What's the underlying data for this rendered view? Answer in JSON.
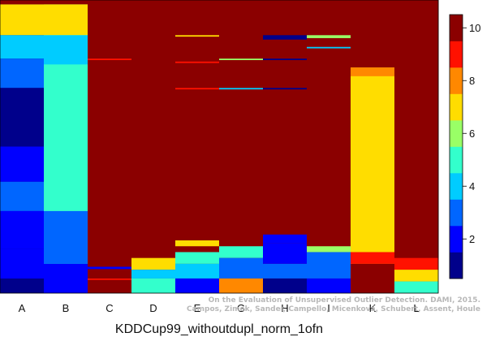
{
  "chart_data": {
    "type": "heatmap",
    "xlabel": "KDDCup99_withoutdupl_norm_1ofn",
    "columns": [
      "A",
      "B",
      "C",
      "D",
      "E",
      "G",
      "H",
      "I",
      "K",
      "L"
    ],
    "color_scale": {
      "min": 0.5,
      "max": 10.5,
      "ticks": [
        2,
        4,
        6,
        8,
        10
      ],
      "colors": [
        "#00008B",
        "#0000FF",
        "#0066FF",
        "#00CCFF",
        "#33FFCC",
        "#99FF66",
        "#FFDD00",
        "#FF8800",
        "#FF1100",
        "#8B0000"
      ]
    },
    "base_column_values": [
      1,
      5,
      10,
      10,
      10,
      10,
      10,
      10,
      7,
      10
    ],
    "column_segments": [
      [
        {
          "from": 0,
          "to": 0.015,
          "value": 10
        },
        {
          "from": 0.015,
          "to": 0.12,
          "value": 6.5
        },
        {
          "from": 0.12,
          "to": 0.2,
          "value": 4
        },
        {
          "from": 0.2,
          "to": 0.3,
          "value": 2.5
        },
        {
          "from": 0.3,
          "to": 0.5,
          "value": 1.3
        },
        {
          "from": 0.5,
          "to": 0.62,
          "value": 1.5
        },
        {
          "from": 0.62,
          "to": 0.72,
          "value": 2.5
        },
        {
          "from": 0.72,
          "to": 0.85,
          "value": 2
        },
        {
          "from": 0.85,
          "to": 0.95,
          "value": 1.5
        }
      ],
      [
        {
          "from": 0,
          "to": 0.015,
          "value": 10
        },
        {
          "from": 0.015,
          "to": 0.12,
          "value": 6.5
        },
        {
          "from": 0.12,
          "to": 0.22,
          "value": 3.5
        },
        {
          "from": 0.22,
          "to": 0.5,
          "value": 5
        },
        {
          "from": 0.5,
          "to": 0.72,
          "value": 4.6
        },
        {
          "from": 0.72,
          "to": 0.9,
          "value": 2.5
        },
        {
          "from": 0.9,
          "to": 1,
          "value": 1.5
        }
      ],
      [
        {
          "from": 0.2,
          "to": 0.205,
          "value": 9
        },
        {
          "from": 0.91,
          "to": 0.918,
          "value": 2
        },
        {
          "from": 0.95,
          "to": 0.955,
          "value": 9
        }
      ],
      [
        {
          "from": 0.88,
          "to": 0.92,
          "value": 6.5
        },
        {
          "from": 0.92,
          "to": 0.95,
          "value": 3.5
        },
        {
          "from": 0.95,
          "to": 1,
          "value": 4.5
        }
      ],
      [
        {
          "from": 0.12,
          "to": 0.125,
          "value": 7
        },
        {
          "from": 0.21,
          "to": 0.215,
          "value": 9
        },
        {
          "from": 0.3,
          "to": 0.305,
          "value": 9
        },
        {
          "from": 0.82,
          "to": 0.84,
          "value": 6.5
        },
        {
          "from": 0.86,
          "to": 0.9,
          "value": 4.5
        },
        {
          "from": 0.9,
          "to": 0.95,
          "value": 3.5
        },
        {
          "from": 0.95,
          "to": 1,
          "value": 2
        }
      ],
      [
        {
          "from": 0.2,
          "to": 0.205,
          "value": 6
        },
        {
          "from": 0.3,
          "to": 0.305,
          "value": 4
        },
        {
          "from": 0.84,
          "to": 0.88,
          "value": 4.5
        },
        {
          "from": 0.88,
          "to": 0.95,
          "value": 2.5
        },
        {
          "from": 0.95,
          "to": 1,
          "value": 8
        }
      ],
      [
        {
          "from": 0.12,
          "to": 0.135,
          "value": 1
        },
        {
          "from": 0.2,
          "to": 0.205,
          "value": 1
        },
        {
          "from": 0.3,
          "to": 0.305,
          "value": 1
        },
        {
          "from": 0.8,
          "to": 0.83,
          "value": 2
        },
        {
          "from": 0.83,
          "to": 0.9,
          "value": 1.5
        },
        {
          "from": 0.9,
          "to": 0.95,
          "value": 2.5
        },
        {
          "from": 0.95,
          "to": 1,
          "value": 1
        }
      ],
      [
        {
          "from": 0.12,
          "to": 0.13,
          "value": 6
        },
        {
          "from": 0.16,
          "to": 0.165,
          "value": 4
        },
        {
          "from": 0.84,
          "to": 0.86,
          "value": 6
        },
        {
          "from": 0.86,
          "to": 0.95,
          "value": 3
        },
        {
          "from": 0.95,
          "to": 1,
          "value": 2
        }
      ],
      [
        {
          "from": 0,
          "to": 0.23,
          "value": 10
        },
        {
          "from": 0.23,
          "to": 0.26,
          "value": 8
        },
        {
          "from": 0.86,
          "to": 0.9,
          "value": 9
        },
        {
          "from": 0.9,
          "to": 1,
          "value": 10
        }
      ],
      [
        {
          "from": 0.88,
          "to": 0.92,
          "value": 9
        },
        {
          "from": 0.92,
          "to": 0.96,
          "value": 6.5
        },
        {
          "from": 0.96,
          "to": 1,
          "value": 5
        }
      ]
    ],
    "grid": false,
    "legend_placement": "right"
  },
  "watermark": {
    "line1": "On the Evaluation of Unsupervised Outlier Detection. DAMI, 2015.",
    "line2": "Campos, Zimek, Sander, Campello, Micenková, Schubert, Assent, Houle"
  }
}
